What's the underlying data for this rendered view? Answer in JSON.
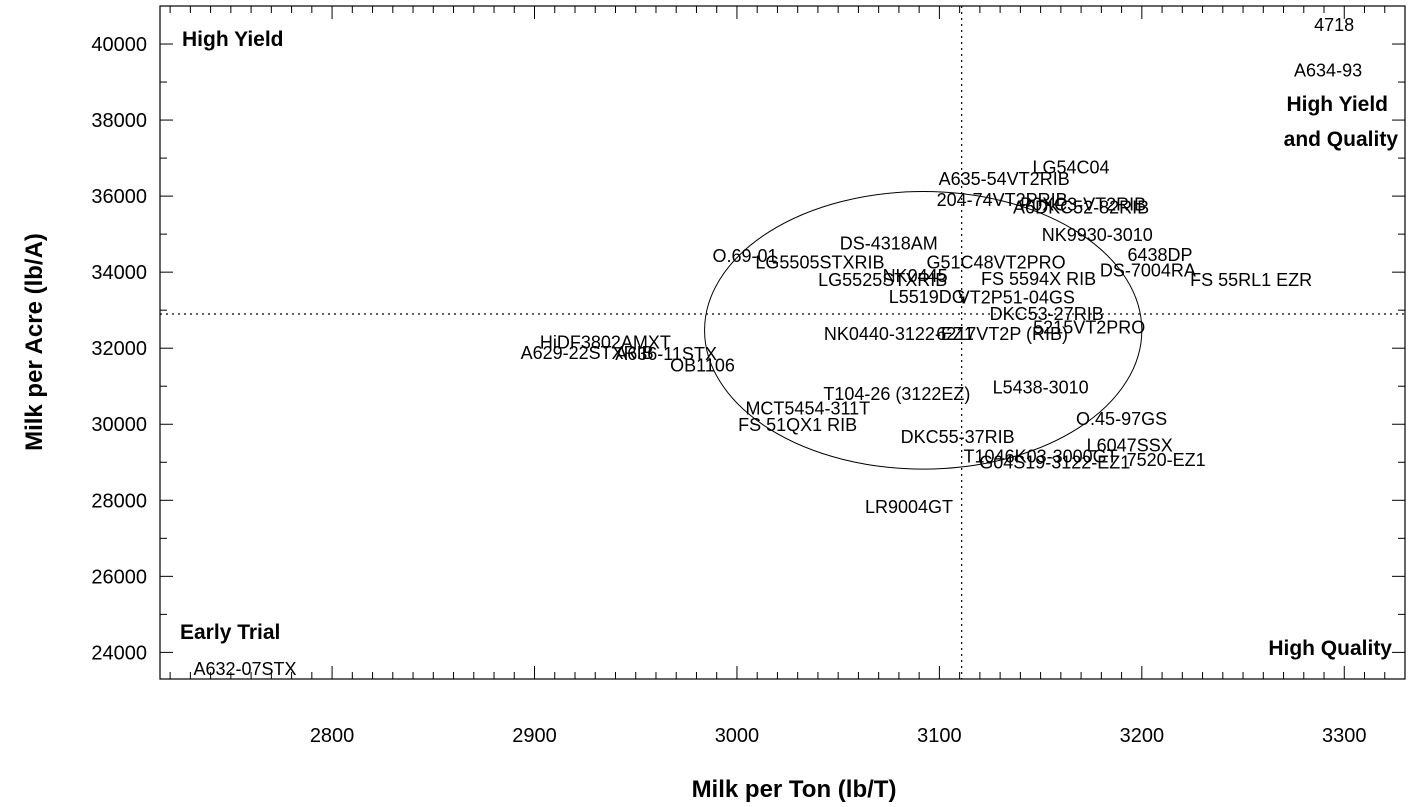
{
  "chart_data": {
    "type": "scatter",
    "xlabel": "Milk per Ton (lb/T)",
    "ylabel": "Milk per Acre (lb/A)",
    "xlim": [
      2715,
      3330
    ],
    "ylim": [
      23300,
      41000
    ],
    "x_ticks": [
      2800,
      2900,
      3000,
      3100,
      3200,
      3300
    ],
    "y_ticks": [
      24000,
      26000,
      28000,
      30000,
      32000,
      34000,
      36000,
      38000,
      40000
    ],
    "x_minor_step": 10,
    "y_minor_step": 1000,
    "mean_x": 3111,
    "mean_y": 32900,
    "ellipse": {
      "cx": 3092,
      "cy": 32470,
      "rx": 108,
      "ry": 3650
    },
    "quadrant_labels": {
      "top_left": "High Yield",
      "top_right": [
        "High Yield",
        "and Quality"
      ],
      "bottom_left": "Early Trial",
      "bottom_right": "High Quality"
    },
    "points": [
      {
        "label": "4718",
        "x": 3295,
        "y": 40500
      },
      {
        "label": "A634-93",
        "x": 3292,
        "y": 39300
      },
      {
        "label": "LG54C04",
        "x": 3165,
        "y": 36750
      },
      {
        "label": "A635-54VT2RIB",
        "x": 3132,
        "y": 36450
      },
      {
        "label": "204-74VT2PRIB",
        "x": 3131,
        "y": 35900
      },
      {
        "label": "A6DKC52-82RIB",
        "x": 3170,
        "y": 35700
      },
      {
        "label": "P0XC3-VT2RIB",
        "x": 3171,
        "y": 35780
      },
      {
        "label": "NK9930-3010",
        "x": 3178,
        "y": 34980
      },
      {
        "label": "DS-4318AM",
        "x": 3075,
        "y": 34760
      },
      {
        "label": "O.69-01",
        "x": 3004,
        "y": 34430
      },
      {
        "label": "LG5505STXRIB",
        "x": 3041,
        "y": 34250
      },
      {
        "label": "G51C48VT2PRO",
        "x": 3128,
        "y": 34250
      },
      {
        "label": "6438DP",
        "x": 3209,
        "y": 34450
      },
      {
        "label": "DS-7004RA",
        "x": 3203,
        "y": 34050
      },
      {
        "label": "FS 55RL1 EZR",
        "x": 3254,
        "y": 33800
      },
      {
        "label": "LG5525STXRIB",
        "x": 3072,
        "y": 33800
      },
      {
        "label": "NK0445",
        "x": 3088,
        "y": 33900
      },
      {
        "label": "FS 5594X RIB",
        "x": 3149,
        "y": 33820
      },
      {
        "label": "L5519DG",
        "x": 3094,
        "y": 33350
      },
      {
        "label": "VT2P51-04GS",
        "x": 3138,
        "y": 33330
      },
      {
        "label": "DKC53-27RIB",
        "x": 3153,
        "y": 32900
      },
      {
        "label": "5215VT2PRO",
        "x": 3174,
        "y": 32540
      },
      {
        "label": "NK0440-3122-EZ1",
        "x": 3080,
        "y": 32370
      },
      {
        "label": "6217VT2P (RIB)",
        "x": 3131,
        "y": 32370
      },
      {
        "label": "HiDF3802AMXT",
        "x": 2935,
        "y": 32150
      },
      {
        "label": "A629-22STXRIB",
        "x": 2926,
        "y": 31870
      },
      {
        "label": "A636-11STX",
        "x": 2965,
        "y": 31850
      },
      {
        "label": "OB1106",
        "x": 2983,
        "y": 31550
      },
      {
        "label": "T104-26 (3122EZ)",
        "x": 3079,
        "y": 30800
      },
      {
        "label": "L5438-3010",
        "x": 3150,
        "y": 30970
      },
      {
        "label": "MCT5454-311T",
        "x": 3035,
        "y": 30420
      },
      {
        "label": "FS 51QX1 RIB",
        "x": 3030,
        "y": 29980
      },
      {
        "label": "O.45-97GS",
        "x": 3190,
        "y": 30140
      },
      {
        "label": "DKC55-37RIB",
        "x": 3109,
        "y": 29670
      },
      {
        "label": "L6047SSX",
        "x": 3194,
        "y": 29440
      },
      {
        "label": "T1046K03-3000GT",
        "x": 3150,
        "y": 29150
      },
      {
        "label": "G04S19-3122-EZ1",
        "x": 3157,
        "y": 29000
      },
      {
        "label": "7520-EZ1",
        "x": 3212,
        "y": 29060
      },
      {
        "label": "LR9004GT",
        "x": 3085,
        "y": 27820
      },
      {
        "label": "A632-07STX",
        "x": 2757,
        "y": 23560
      }
    ]
  }
}
